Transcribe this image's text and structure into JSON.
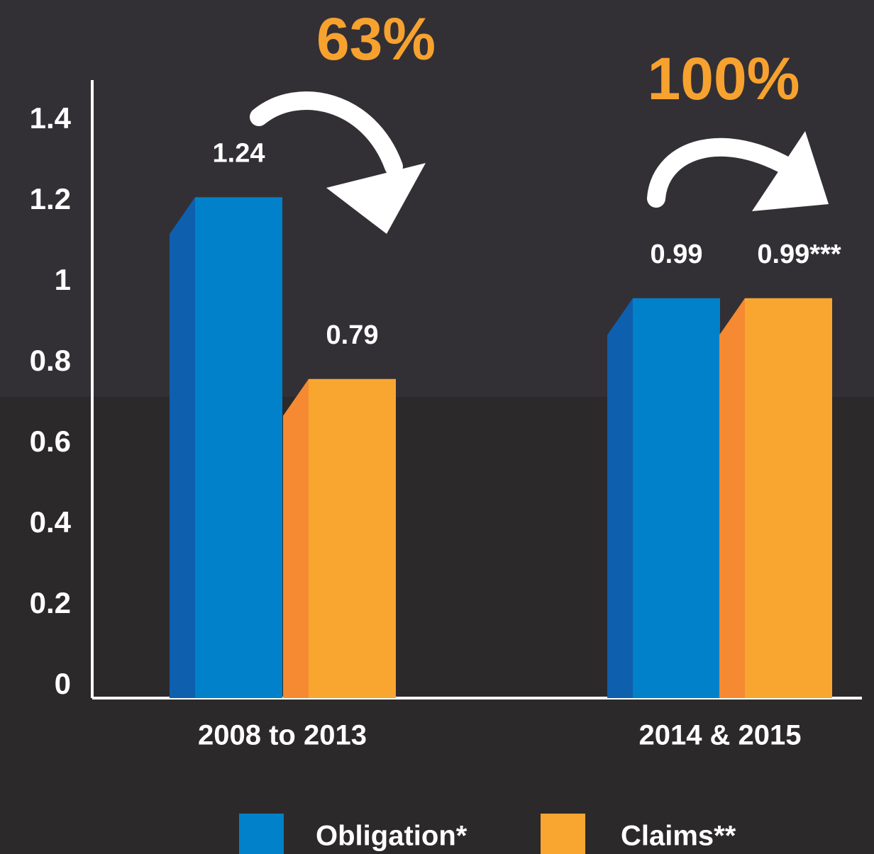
{
  "chart_data": {
    "type": "bar",
    "categories": [
      "2008 to 2013",
      "2014 & 2015"
    ],
    "series": [
      {
        "name": "Obligation*",
        "color": "#0081c9",
        "side_color": "#0e5fae",
        "values": [
          1.24,
          0.99
        ]
      },
      {
        "name": "Claims**",
        "color": "#f9a630",
        "side_color": "#f58a32",
        "values": [
          0.79,
          0.99
        ],
        "value_labels": [
          "0.79",
          "0.99***"
        ]
      }
    ],
    "annotations": [
      "63%",
      "100%"
    ],
    "annotation_color": "#f7a22f",
    "ylim": [
      0,
      1.53
    ],
    "yticks": [
      0,
      0.2,
      0.4,
      0.6,
      0.8,
      1,
      1.2,
      1.4
    ]
  }
}
